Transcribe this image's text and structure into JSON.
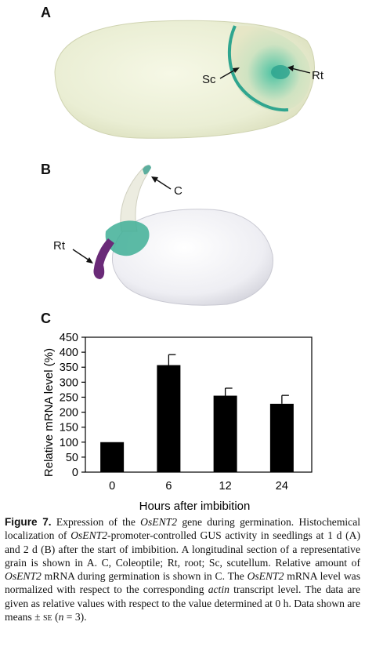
{
  "panels": {
    "a": {
      "letter": "A",
      "labels": {
        "sc": "Sc",
        "rt": "Rt"
      }
    },
    "b": {
      "letter": "B",
      "labels": {
        "c": "C",
        "rt": "Rt"
      }
    },
    "c": {
      "letter": "C"
    }
  },
  "chart_data": {
    "type": "bar",
    "categories": [
      "0",
      "6",
      "12",
      "24"
    ],
    "values": [
      100,
      357,
      255,
      228
    ],
    "errors": [
      0,
      35,
      25,
      28
    ],
    "ylim": [
      0,
      450
    ],
    "yticks": [
      0,
      50,
      100,
      150,
      200,
      250,
      300,
      350,
      400,
      450
    ],
    "xlabel": "Hours after imbibition",
    "ylabel": "Relative mRNA level (%)",
    "bar_color": "#000000"
  },
  "caption": {
    "figure_label": "Figure 7.",
    "parts": [
      " Expression of the ",
      "OsENT2",
      " gene during germination. Histochemical localization of ",
      "OsENT2",
      "-promoter-controlled GUS activity in seedlings at 1 d (A) and 2 d (B) after the start of imbibition. A longitudinal section of a representative grain is shown in A. C, Coleoptile; Rt, root; Sc, scutellum. Relative amount of ",
      "OsENT2",
      " mRNA during germination is shown in C. The ",
      "OsENT2",
      " mRNA level was normalized with respect to the corresponding ",
      "actin",
      " transcript level. The data are given as relative values with respect to the value determined at 0 h. Data shown are means ± ",
      "se",
      " (",
      "n",
      " = 3)."
    ]
  },
  "colors": {
    "gus_stain": "#2fa58f",
    "grain": "#eef1dc",
    "seedling": "#f4f4f6",
    "root_tip": "#8a2b6d"
  }
}
